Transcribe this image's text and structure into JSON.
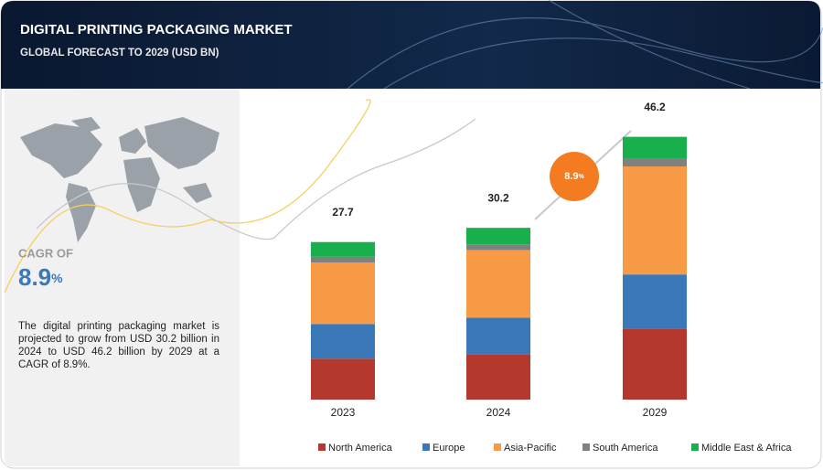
{
  "header": {
    "title": "DIGITAL PRINTING PACKAGING MARKET",
    "subtitle": "GLOBAL FORECAST TO 2029 (USD BN)"
  },
  "sidebar": {
    "cagr_label": "CAGR OF",
    "cagr_value": "8.9",
    "cagr_unit": "%",
    "description": "The digital printing packaging market is projected to grow from USD  30.2 billion in 2024 to USD  46.2 billion by 2029 at a CAGR of 8.9%."
  },
  "chart_data": {
    "type": "stacked_bar",
    "categories": [
      "2023",
      "2024",
      "2029"
    ],
    "totals": [
      27.7,
      30.2,
      46.2
    ],
    "annotation": {
      "value": "8.9",
      "unit": "%"
    },
    "series": [
      {
        "name": "North America",
        "color": "#b5382e",
        "values": [
          7.2,
          8.0,
          12.5
        ]
      },
      {
        "name": "Europe",
        "color": "#3b78b8",
        "values": [
          6.1,
          6.4,
          9.5
        ]
      },
      {
        "name": "Asia-Pacific",
        "color": "#f79a45",
        "values": [
          10.8,
          11.9,
          19.0
        ]
      },
      {
        "name": "South America",
        "color": "#808080",
        "values": [
          1.0,
          1.0,
          1.3
        ]
      },
      {
        "name": "Middle East & Africa",
        "color": "#1aaf4d",
        "values": [
          2.6,
          2.9,
          3.9
        ]
      }
    ]
  }
}
